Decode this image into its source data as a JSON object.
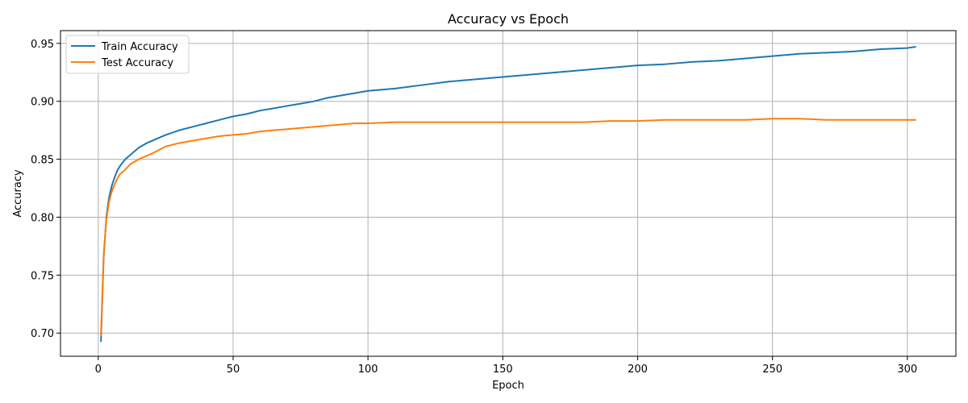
{
  "chart_data": {
    "type": "line",
    "title": "Accuracy vs Epoch",
    "xlabel": "Epoch",
    "ylabel": "Accuracy",
    "xlim": [
      -14,
      318
    ],
    "ylim": [
      0.68,
      0.961
    ],
    "xticks": [
      0,
      50,
      100,
      150,
      200,
      250,
      300
    ],
    "yticks": [
      0.7,
      0.75,
      0.8,
      0.85,
      0.9,
      0.95
    ],
    "ytick_labels": [
      "0.70",
      "0.75",
      "0.80",
      "0.85",
      "0.90",
      "0.95"
    ],
    "grid": true,
    "legend_position": "top-left",
    "series": [
      {
        "name": "Train Accuracy",
        "color": "#1f77b4",
        "x": [
          1,
          2,
          3,
          4,
          5,
          6,
          7,
          8,
          10,
          12,
          15,
          18,
          20,
          25,
          30,
          35,
          40,
          45,
          50,
          55,
          60,
          65,
          70,
          75,
          80,
          85,
          90,
          95,
          100,
          110,
          120,
          130,
          140,
          150,
          160,
          170,
          180,
          190,
          200,
          210,
          220,
          230,
          240,
          250,
          260,
          270,
          280,
          290,
          300,
          303
        ],
        "y": [
          0.693,
          0.765,
          0.8,
          0.817,
          0.827,
          0.834,
          0.84,
          0.844,
          0.85,
          0.854,
          0.86,
          0.864,
          0.866,
          0.871,
          0.875,
          0.878,
          0.881,
          0.884,
          0.887,
          0.889,
          0.892,
          0.894,
          0.896,
          0.898,
          0.9,
          0.903,
          0.905,
          0.907,
          0.909,
          0.911,
          0.914,
          0.917,
          0.919,
          0.921,
          0.923,
          0.925,
          0.927,
          0.929,
          0.931,
          0.932,
          0.934,
          0.935,
          0.937,
          0.939,
          0.941,
          0.942,
          0.943,
          0.945,
          0.946,
          0.947
        ]
      },
      {
        "name": "Test Accuracy",
        "color": "#ff7f0e",
        "x": [
          1,
          2,
          3,
          4,
          5,
          6,
          7,
          8,
          10,
          12,
          15,
          18,
          20,
          25,
          30,
          35,
          40,
          45,
          50,
          55,
          60,
          65,
          70,
          75,
          80,
          85,
          90,
          95,
          100,
          110,
          120,
          130,
          140,
          150,
          160,
          170,
          180,
          190,
          200,
          210,
          220,
          230,
          240,
          250,
          255,
          260,
          270,
          280,
          290,
          300,
          303
        ],
        "y": [
          0.698,
          0.767,
          0.798,
          0.813,
          0.822,
          0.828,
          0.833,
          0.837,
          0.841,
          0.846,
          0.85,
          0.853,
          0.855,
          0.861,
          0.864,
          0.866,
          0.868,
          0.87,
          0.871,
          0.872,
          0.874,
          0.875,
          0.876,
          0.877,
          0.878,
          0.879,
          0.88,
          0.881,
          0.881,
          0.882,
          0.882,
          0.882,
          0.882,
          0.882,
          0.882,
          0.882,
          0.882,
          0.883,
          0.883,
          0.884,
          0.884,
          0.884,
          0.884,
          0.885,
          0.885,
          0.885,
          0.884,
          0.884,
          0.884,
          0.884,
          0.884
        ]
      }
    ]
  }
}
